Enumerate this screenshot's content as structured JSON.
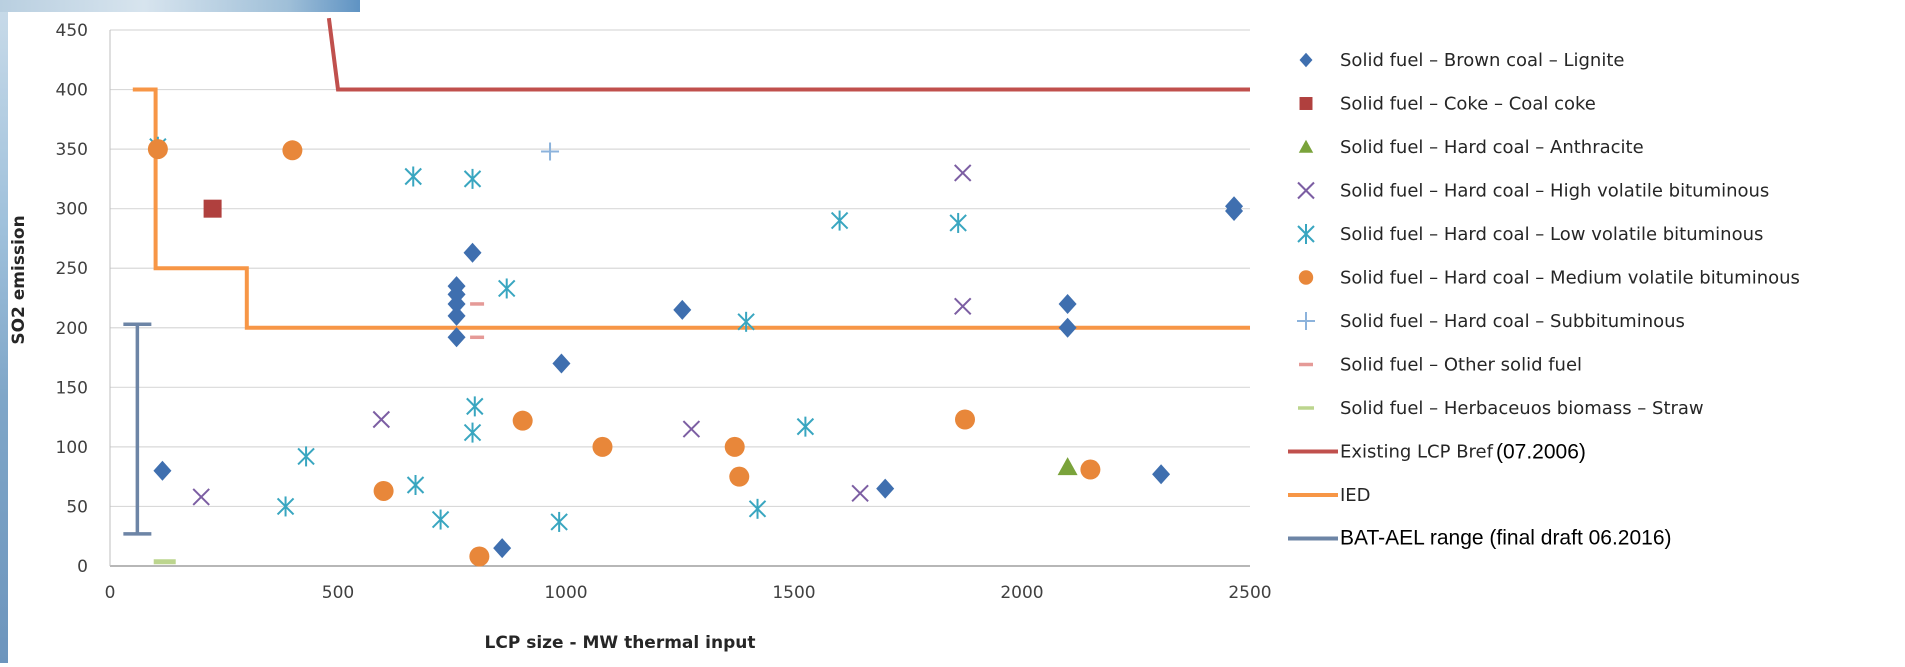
{
  "chart_data": {
    "type": "scatter",
    "xlabel": "LCP size - MW thermal input",
    "ylabel": "SO2 emission",
    "xlim": [
      0,
      2500
    ],
    "ylim": [
      0,
      450
    ],
    "x_ticks": [
      0,
      500,
      1000,
      1500,
      2000,
      2500
    ],
    "y_ticks": [
      0,
      50,
      100,
      150,
      200,
      250,
      300,
      350,
      400,
      450
    ],
    "grid": "horizontal",
    "legend_position": "right",
    "series": [
      {
        "name": "Solid fuel – Brown coal – Lignite",
        "marker": "diamond",
        "color": "#3f6faf",
        "points": [
          [
            115,
            80
          ],
          [
            795,
            263
          ],
          [
            760,
            235
          ],
          [
            760,
            228
          ],
          [
            760,
            220
          ],
          [
            760,
            210
          ],
          [
            760,
            192
          ],
          [
            990,
            170
          ],
          [
            1255,
            215
          ],
          [
            860,
            15
          ],
          [
            1700,
            65
          ],
          [
            2100,
            220
          ],
          [
            2100,
            200
          ],
          [
            2305,
            77
          ],
          [
            2465,
            302
          ],
          [
            2465,
            298
          ]
        ]
      },
      {
        "name": "Solid fuel – Coke – Coal coke",
        "marker": "square",
        "color": "#b0403e",
        "points": [
          [
            225,
            300
          ]
        ]
      },
      {
        "name": "Solid fuel – Hard coal – Anthracite",
        "marker": "triangle",
        "color": "#7aa33b",
        "points": [
          [
            2100,
            83
          ]
        ]
      },
      {
        "name": "Solid fuel – Hard coal – High volatile bituminous",
        "marker": "x",
        "color": "#7c5ea3",
        "points": [
          [
            200,
            58
          ],
          [
            595,
            123
          ],
          [
            1275,
            115
          ],
          [
            1645,
            61
          ],
          [
            1870,
            330
          ],
          [
            1870,
            218
          ]
        ]
      },
      {
        "name": "Solid fuel – Hard coal – Low volatile bituminous",
        "marker": "asterisk",
        "color": "#39a6c0",
        "points": [
          [
            105,
            352
          ],
          [
            385,
            50
          ],
          [
            430,
            92
          ],
          [
            665,
            327
          ],
          [
            670,
            68
          ],
          [
            725,
            39
          ],
          [
            795,
            325
          ],
          [
            800,
            134
          ],
          [
            795,
            112
          ],
          [
            870,
            233
          ],
          [
            985,
            37
          ],
          [
            1395,
            205
          ],
          [
            1420,
            48
          ],
          [
            1525,
            117
          ],
          [
            1600,
            290
          ],
          [
            1860,
            288
          ]
        ]
      },
      {
        "name": "Solid fuel – Hard coal – Medium volatile bituminous",
        "marker": "circle",
        "color": "#e8873a",
        "points": [
          [
            105,
            350
          ],
          [
            400,
            349
          ],
          [
            600,
            63
          ],
          [
            810,
            8
          ],
          [
            905,
            122
          ],
          [
            1080,
            100
          ],
          [
            1370,
            100
          ],
          [
            1380,
            75
          ],
          [
            1875,
            123
          ],
          [
            2150,
            81
          ]
        ]
      },
      {
        "name": "Solid fuel – Hard coal – Subbituminous",
        "marker": "plus",
        "color": "#8cb3dc",
        "points": [
          [
            965,
            348
          ]
        ]
      },
      {
        "name": "Solid fuel – Other solid fuel",
        "marker": "dash",
        "color": "#e59a97",
        "points": [
          [
            805,
            220
          ],
          [
            805,
            192
          ]
        ]
      },
      {
        "name": "Solid fuel – Herbaceuos biomass – Straw",
        "marker": "dash",
        "color": "#bcd58e",
        "points": [
          [
            120,
            1
          ]
        ]
      }
    ],
    "lines": [
      {
        "name": "Existing LCP Bref",
        "annotation": "(07.2006)",
        "color": "#c0504d",
        "points": [
          [
            480,
            460
          ],
          [
            500,
            400
          ],
          [
            2500,
            400
          ]
        ]
      },
      {
        "name": "IED",
        "color": "#f79646",
        "points": [
          [
            50,
            400
          ],
          [
            100,
            400
          ],
          [
            100,
            250
          ],
          [
            300,
            250
          ],
          [
            300,
            200
          ],
          [
            2500,
            200
          ]
        ]
      }
    ],
    "range_bar": {
      "name": "BAT-AEL range (final draft 06.2016)",
      "color": "#6d85a6",
      "x": 60,
      "low": 27,
      "high": 203
    }
  }
}
